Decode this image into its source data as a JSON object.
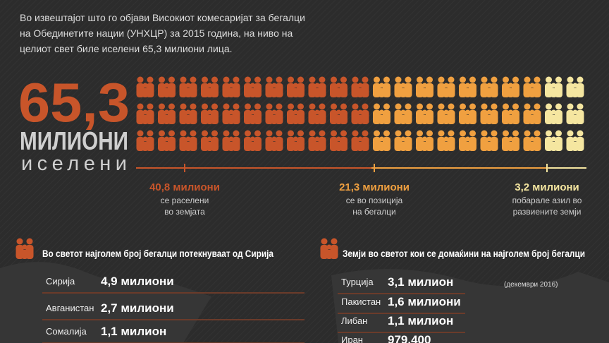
{
  "intro": {
    "lines": [
      "Во извештајот што го објави Високиот комесаријат за бегалци",
      "на Обединетите нации (УНХЦР) за 2015 година, на ниво на",
      "целиот свет биле иселени 65,3 милиони лица."
    ]
  },
  "headline": {
    "number": "65,3",
    "unit": "МИЛИОНИ",
    "label": "иселени"
  },
  "groups": [
    {
      "amount": "40,8 милиони",
      "description": [
        "се раселени",
        "во земјата"
      ]
    },
    {
      "amount": "21,3 милиони",
      "description": [
        "се во позиција",
        "на бегалци"
      ]
    },
    {
      "amount": "3,2 милиони",
      "description": [
        "побарале азил во",
        "развиените земји"
      ]
    }
  ],
  "origins": {
    "title": "Во светот најголем број бегалци потекнуваат од Сирија",
    "rows": [
      {
        "country": "Сирија",
        "amount": "4,9 милиони"
      },
      {
        "country": "Авганистан",
        "amount": "2,7 милиони"
      },
      {
        "country": "Сомалија",
        "amount": "1,1 милион"
      }
    ]
  },
  "hosts": {
    "title": "Земји во светот кои се домаќини на најголем број бегалци",
    "rows": [
      {
        "country": "Турција",
        "amount": "3,1 милион",
        "note": "(декември 2016)"
      },
      {
        "country": "Пакистан",
        "amount": "1,6 милиони"
      },
      {
        "country": "Либан",
        "amount": "1,1 милион"
      },
      {
        "country": "Иран",
        "amount": "979.400"
      }
    ]
  }
}
